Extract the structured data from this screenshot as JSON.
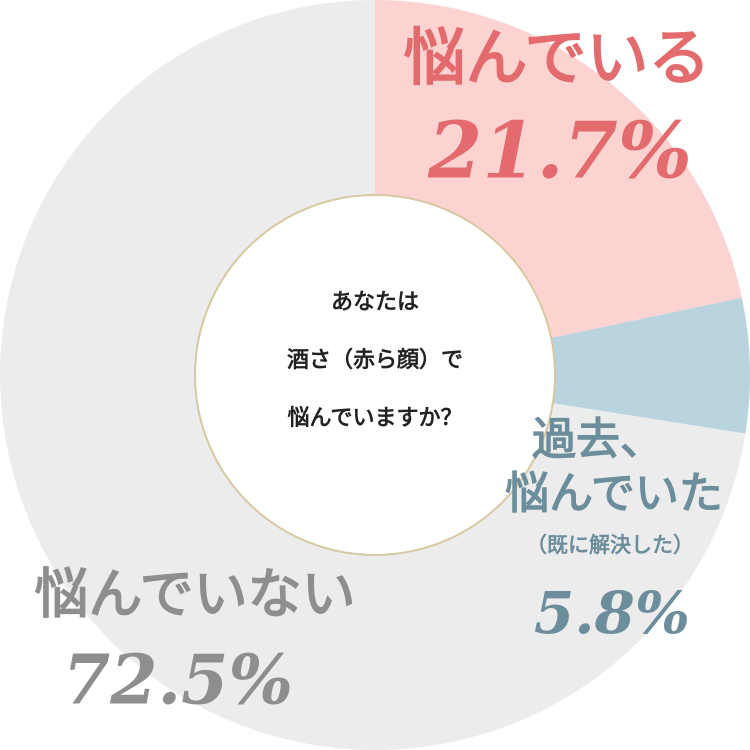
{
  "chart_data": {
    "type": "pie",
    "categories": [
      [
        "悩んでいる"
      ],
      [
        "過去、",
        "悩んでいた",
        "（既に解決した）"
      ],
      [
        "悩んでいない"
      ]
    ],
    "values": [
      21.7,
      5.8,
      72.5
    ],
    "value_labels": [
      "21.7%",
      "5.8%",
      "72.5%"
    ],
    "colors": [
      "#fdd3d1",
      "#b9d4df",
      "#ececec"
    ],
    "label_colors": [
      "#e36a6d",
      "#6b8d9c",
      "#8e8e8e"
    ],
    "center_text": [
      "あなたは",
      "酒さ（赤ら顔）で",
      "悩んでいますか？"
    ]
  }
}
